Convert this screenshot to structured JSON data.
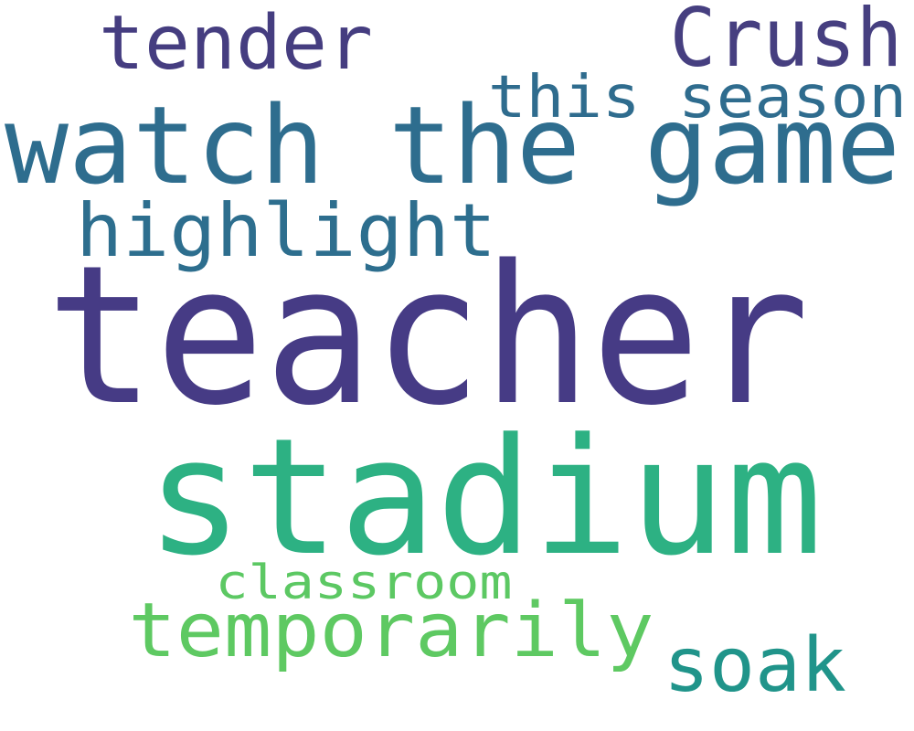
{
  "colors": {
    "background": "#ffffff"
  },
  "words": [
    {
      "id": "teacher",
      "text": "teacher",
      "color": "#463b85"
    },
    {
      "id": "stadium",
      "text": "stadium",
      "color": "#2db183"
    },
    {
      "id": "watch-the-game",
      "text": "watch the game",
      "color": "#2e6d8e"
    },
    {
      "id": "highlight",
      "text": "highlight",
      "color": "#2d6e8e"
    },
    {
      "id": "tender",
      "text": "tender",
      "color": "#453d80"
    },
    {
      "id": "crush",
      "text": "Crush",
      "color": "#463f80"
    },
    {
      "id": "this-season",
      "text": "this season",
      "color": "#2f6c8e"
    },
    {
      "id": "temporarily",
      "text": "temporarily",
      "color": "#5ec962"
    },
    {
      "id": "soak",
      "text": "soak",
      "color": "#20948a"
    },
    {
      "id": "classroom",
      "text": "classroom",
      "color": "#5cc863"
    }
  ]
}
